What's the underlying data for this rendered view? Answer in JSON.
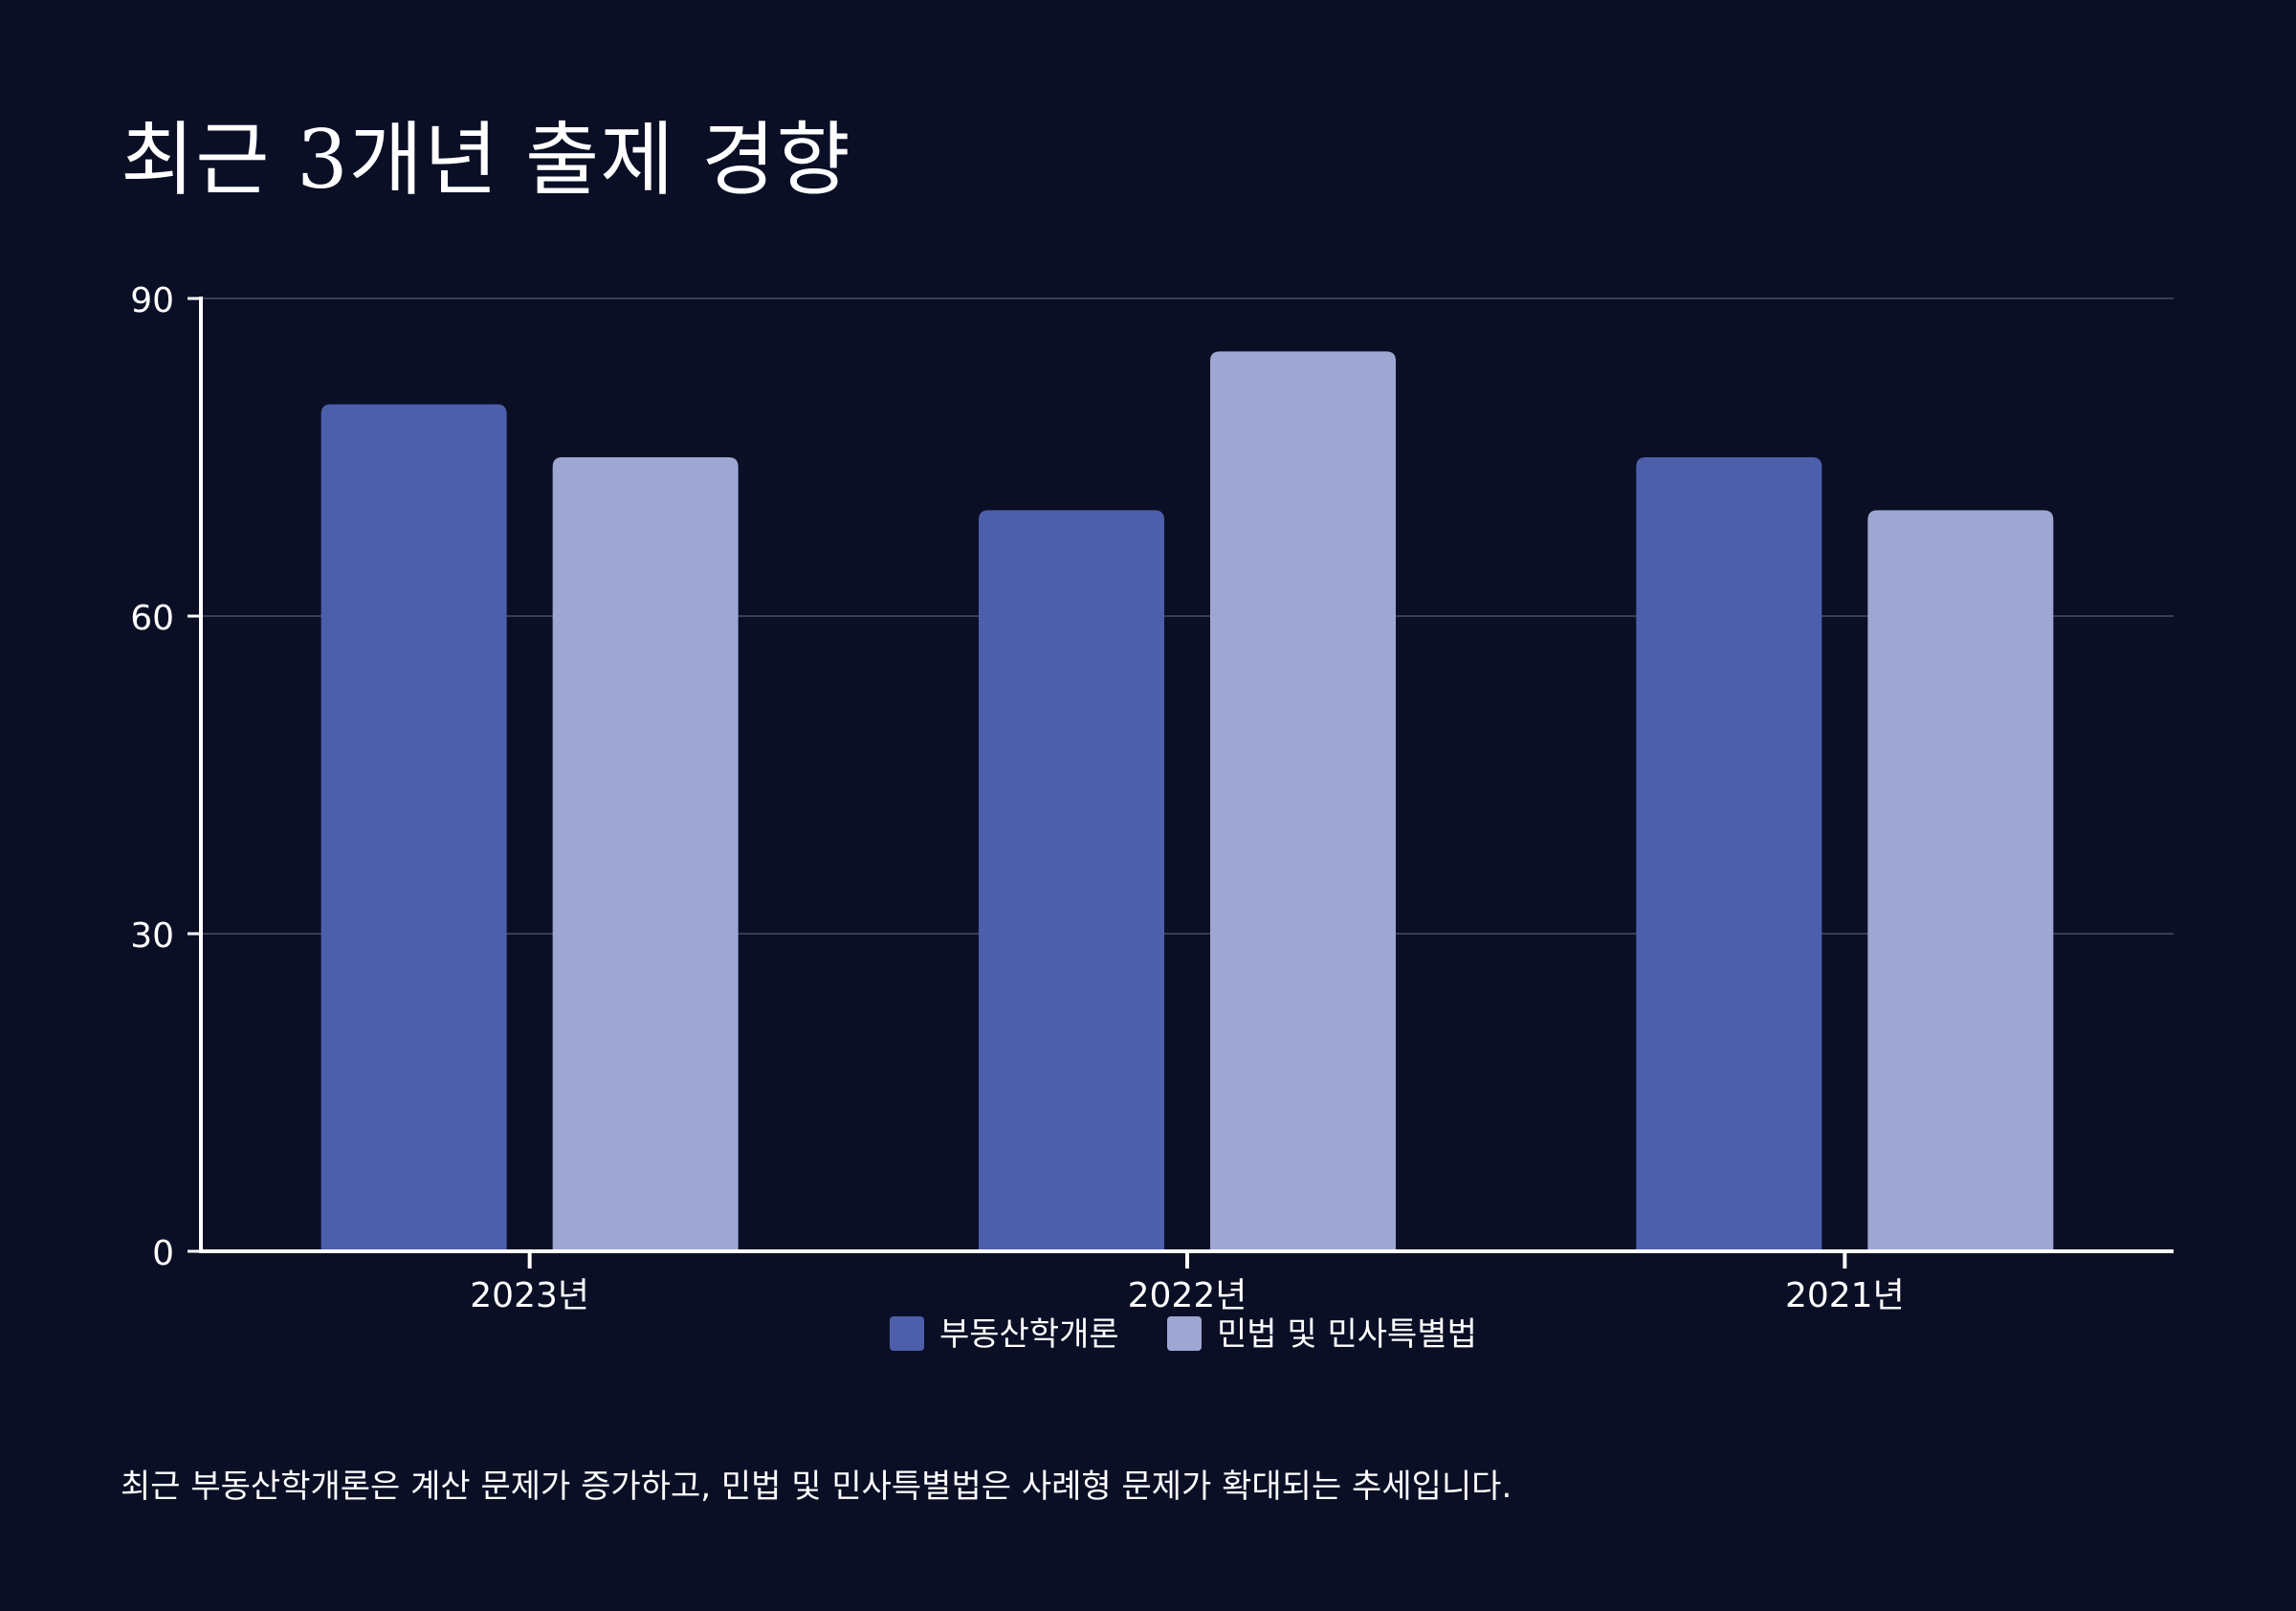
{
  "title": "최근 3개년 출제 경향",
  "caption": "최근 부동산학개론은 계산 문제가 증가하고, 민법 및 민사특별법은 사례형 문제가 확대되는 추세입니다.",
  "colors": {
    "background": "#0a0f26",
    "axis": "#ffffff",
    "grid": "#3a3f58"
  },
  "chart_data": {
    "type": "bar",
    "categories": [
      "2023년",
      "2022년",
      "2021년"
    ],
    "series": [
      {
        "name": "부동산학개론",
        "values": [
          80,
          70,
          75
        ],
        "color": "#4d5fab"
      },
      {
        "name": "민법 및 민사특별법",
        "values": [
          75,
          85,
          70
        ],
        "color": "#9ea7d2"
      }
    ],
    "yticks": [
      "0",
      "30",
      "60",
      "90"
    ],
    "ylim": [
      0,
      90
    ],
    "grid": true,
    "legend": "bottom-center"
  }
}
